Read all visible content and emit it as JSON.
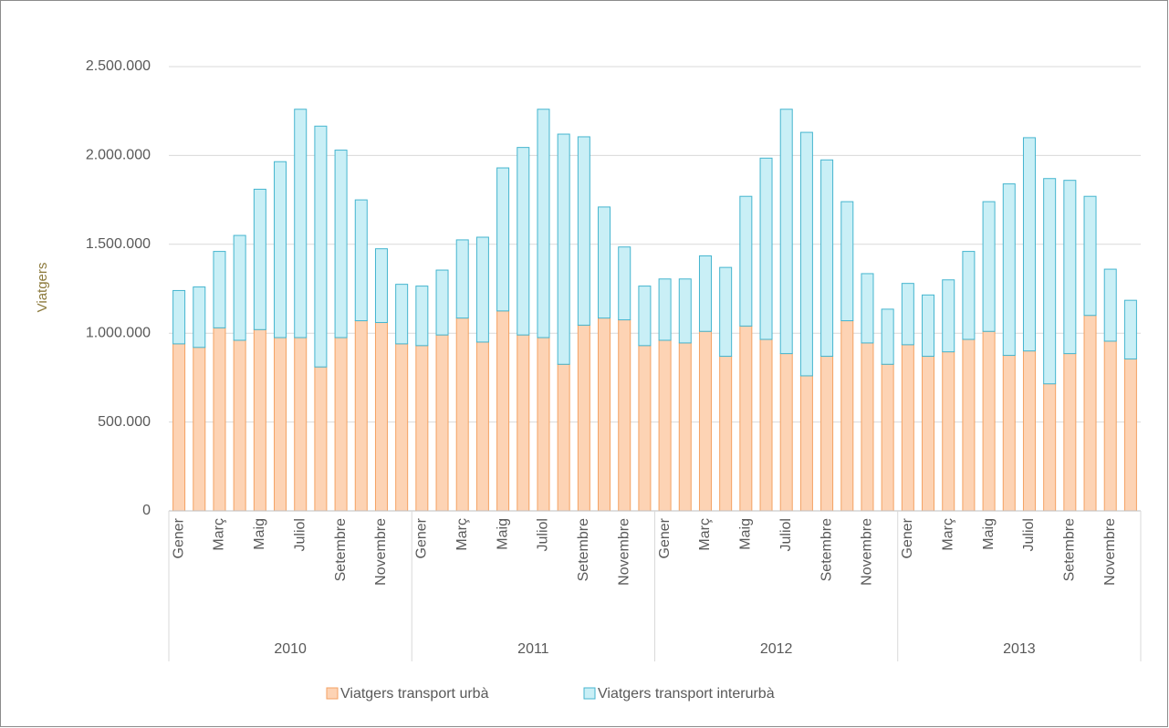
{
  "chart_data": {
    "type": "stacked_bar",
    "y_label": "Viatgers",
    "categories": [
      "Gener",
      null,
      "Març",
      null,
      "Maig",
      null,
      "Juliol",
      null,
      "Setembre",
      null,
      "Novembre",
      null,
      "Gener",
      null,
      "Març",
      null,
      "Maig",
      null,
      "Juliol",
      null,
      "Setembre",
      null,
      "Novembre",
      null,
      "Gener",
      null,
      "Març",
      null,
      "Maig",
      null,
      "Juliol",
      null,
      "Setembre",
      null,
      "Novembre",
      null,
      "Gener",
      null,
      "Març",
      null,
      "Maig",
      null,
      "Juliol",
      null,
      "Setembre",
      null,
      "Novembre",
      null
    ],
    "group_labels": [
      "2010",
      "2011",
      "2012",
      "2013"
    ],
    "series": [
      {
        "name": "Viatgers transport urbà",
        "color": "#fdd3b4",
        "stroke": "#f4a263",
        "values": [
          940000,
          920000,
          1030000,
          960000,
          1020000,
          975000,
          975000,
          810000,
          975000,
          1070000,
          1060000,
          940000,
          930000,
          990000,
          1085000,
          950000,
          1125000,
          990000,
          975000,
          825000,
          1045000,
          1085000,
          1075000,
          930000,
          960000,
          945000,
          1010000,
          870000,
          1040000,
          965000,
          885000,
          760000,
          870000,
          1070000,
          945000,
          825000,
          935000,
          870000,
          895000,
          965000,
          1010000,
          875000,
          900000,
          715000,
          885000,
          1100000,
          955000,
          855000
        ]
      },
      {
        "name": "Viatgers transport interurbà",
        "color": "#c9eff6",
        "stroke": "#45b5cf",
        "values": [
          300000,
          340000,
          430000,
          590000,
          790000,
          990000,
          1285000,
          1355000,
          1055000,
          680000,
          415000,
          335000,
          335000,
          365000,
          440000,
          590000,
          805000,
          1055000,
          1285000,
          1295000,
          1060000,
          625000,
          410000,
          335000,
          345000,
          360000,
          425000,
          500000,
          730000,
          1020000,
          1375000,
          1370000,
          1105000,
          670000,
          390000,
          310000,
          345000,
          345000,
          405000,
          495000,
          730000,
          965000,
          1200000,
          1155000,
          975000,
          670000,
          405000,
          330000
        ]
      }
    ],
    "ylim": [
      0,
      2500000
    ],
    "yticks": [
      0,
      {
        "value": 500000,
        "label": "500.000"
      },
      {
        "value": 1000000,
        "label": "1.000.000"
      },
      {
        "value": 1500000,
        "label": "1.500.000"
      },
      {
        "value": 2000000,
        "label": "2.000.000"
      },
      {
        "value": 2500000,
        "label": "2.500.000"
      }
    ],
    "grid": true,
    "legend": "bottom"
  }
}
